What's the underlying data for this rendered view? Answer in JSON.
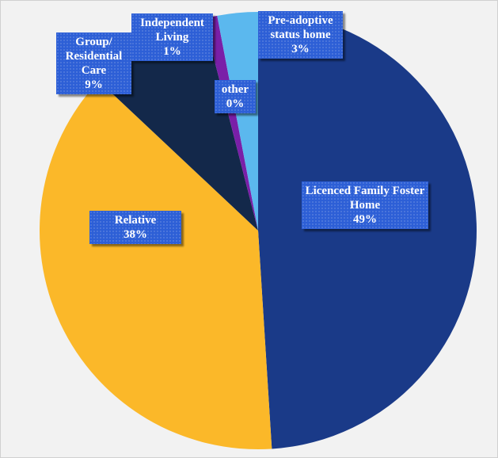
{
  "chart_data": {
    "type": "pie",
    "categories": [
      "Licenced Family Foster Home",
      "Relative",
      "Group/ Residential Care",
      "Independent Living",
      "other",
      "Pre-adoptive status home"
    ],
    "values": [
      49,
      38,
      9,
      1,
      0,
      3
    ],
    "value_labels": [
      "49%",
      "38%",
      "9%",
      "1%",
      "0%",
      "3%"
    ],
    "colors": [
      "#1a3a88",
      "#fbb829",
      "#13284a",
      "#7a1fa8",
      "#2e75b6",
      "#5bb8ee"
    ]
  }
}
